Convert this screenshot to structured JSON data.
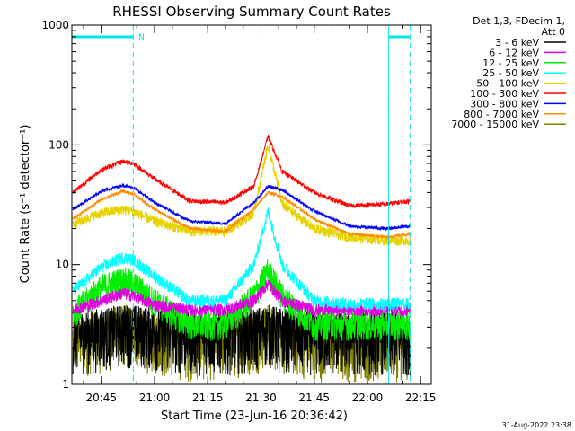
{
  "chart_data": {
    "type": "line",
    "title": "RHESSI Observing Summary Count Rates",
    "xlabel": "Start Time (23-Jun-16 20:36:42)",
    "ylabel": "Count Rate (s⁻¹ detector⁻¹)",
    "y_scale": "log",
    "ylim": [
      1,
      1000
    ],
    "xlim": [
      "20:36:42",
      "22:18:00"
    ],
    "x_tick_labels": [
      "20:45",
      "21:00",
      "21:15",
      "21:30",
      "21:45",
      "22:00",
      "22:15"
    ],
    "y_tick_labels": [
      "1",
      "10",
      "100",
      "1000"
    ],
    "legend_title": "Det 1,3, FDecim 1, Att 0",
    "legend_position": "right",
    "grid": false,
    "footer_date": "31-Aug-2022 23:38",
    "markers": {
      "night_label": "N",
      "night_bar_color": "#00e5e5",
      "night_intervals": [
        [
          "20:36:42",
          "20:54:00"
        ],
        [
          "22:06:00",
          "22:12:00"
        ]
      ],
      "vertical_lines": [
        {
          "time": "20:54:00",
          "style": "dashed"
        },
        {
          "time": "22:06:00",
          "style": "solid"
        },
        {
          "time": "22:12:00",
          "style": "dashed"
        }
      ]
    },
    "series": [
      {
        "name": "3 - 6 keV",
        "color": "#000000",
        "x": [
          "20:37",
          "20:45",
          "20:51",
          "20:54",
          "21:00",
          "21:10",
          "21:20",
          "21:28",
          "21:32",
          "21:36",
          "21:45",
          "21:55",
          "22:05",
          "22:12"
        ],
        "y": [
          2.6,
          2.8,
          3,
          3,
          2.8,
          2.6,
          2.6,
          2.8,
          3,
          2.8,
          2.6,
          2.6,
          2.6,
          2.6
        ]
      },
      {
        "name": "6 - 12 keV",
        "color": "#e000e0",
        "x": [
          "20:37",
          "20:45",
          "20:51",
          "20:54",
          "21:00",
          "21:10",
          "21:20",
          "21:28",
          "21:32",
          "21:36",
          "21:45",
          "21:55",
          "22:05",
          "22:12"
        ],
        "y": [
          4.2,
          5,
          5.8,
          5.5,
          4.6,
          4.2,
          4.2,
          5,
          7,
          5,
          4.2,
          4.2,
          4.2,
          4.2
        ]
      },
      {
        "name": "12 - 25 keV",
        "color": "#00ee00",
        "x": [
          "20:37",
          "20:45",
          "20:51",
          "20:54",
          "21:00",
          "21:10",
          "21:20",
          "21:28",
          "21:32",
          "21:36",
          "21:45",
          "21:55",
          "22:05",
          "22:12"
        ],
        "y": [
          4,
          6.5,
          7.5,
          7,
          5,
          3.2,
          3.2,
          5.5,
          9,
          5.5,
          3.2,
          3.2,
          3.2,
          3.2
        ]
      },
      {
        "name": "25 - 50 keV",
        "color": "#00ffff",
        "x": [
          "20:37",
          "20:45",
          "20:51",
          "20:54",
          "21:00",
          "21:10",
          "21:20",
          "21:28",
          "21:32",
          "21:36",
          "21:45",
          "21:55",
          "22:05",
          "22:12"
        ],
        "y": [
          6,
          9.5,
          11.5,
          11,
          8,
          5,
          5,
          10,
          28,
          10,
          5,
          4.7,
          4.7,
          4.7
        ]
      },
      {
        "name": "50 - 100 keV",
        "color": "#e6d200",
        "x": [
          "20:37",
          "20:45",
          "20:51",
          "20:54",
          "21:00",
          "21:10",
          "21:20",
          "21:28",
          "21:32",
          "21:36",
          "21:45",
          "21:55",
          "22:05",
          "22:12"
        ],
        "y": [
          22,
          27,
          29,
          28,
          23,
          19,
          19,
          27,
          100,
          32,
          20,
          17,
          16,
          16
        ]
      },
      {
        "name": "100 - 300 keV",
        "color": "#ff0000",
        "x": [
          "20:37",
          "20:45",
          "20:51",
          "20:54",
          "21:00",
          "21:10",
          "21:20",
          "21:28",
          "21:32",
          "21:36",
          "21:45",
          "21:55",
          "22:05",
          "22:12"
        ],
        "y": [
          40,
          62,
          73,
          70,
          52,
          34,
          33,
          45,
          118,
          60,
          40,
          31,
          32,
          34
        ]
      },
      {
        "name": "300 - 800 keV",
        "color": "#0000ff",
        "x": [
          "20:37",
          "20:45",
          "20:51",
          "20:54",
          "21:00",
          "21:10",
          "21:20",
          "21:28",
          "21:32",
          "21:36",
          "21:45",
          "21:55",
          "22:05",
          "22:12"
        ],
        "y": [
          29,
          41,
          46,
          44,
          33,
          23,
          22,
          33,
          45,
          42,
          28,
          21,
          20,
          21
        ]
      },
      {
        "name": "800 - 7000 keV",
        "color": "#ff8c00",
        "x": [
          "20:37",
          "20:45",
          "20:51",
          "20:54",
          "21:00",
          "21:10",
          "21:20",
          "21:28",
          "21:32",
          "21:36",
          "21:45",
          "21:55",
          "22:05",
          "22:12"
        ],
        "y": [
          24,
          35,
          41,
          39,
          29,
          20,
          19,
          29,
          40,
          37,
          24,
          18,
          17,
          18
        ]
      },
      {
        "name": "7000 - 15000 keV",
        "color": "#7f7f00",
        "x": [
          "20:37",
          "20:45",
          "20:51",
          "20:54",
          "21:00",
          "21:10",
          "21:20",
          "21:28",
          "21:32",
          "21:36",
          "21:45",
          "21:55",
          "22:05",
          "22:12"
        ],
        "y": [
          2.4,
          2.7,
          3,
          2.9,
          2.6,
          2.3,
          2.4,
          2.6,
          3,
          2.6,
          2.3,
          2.3,
          2.3,
          2.3
        ]
      }
    ]
  }
}
